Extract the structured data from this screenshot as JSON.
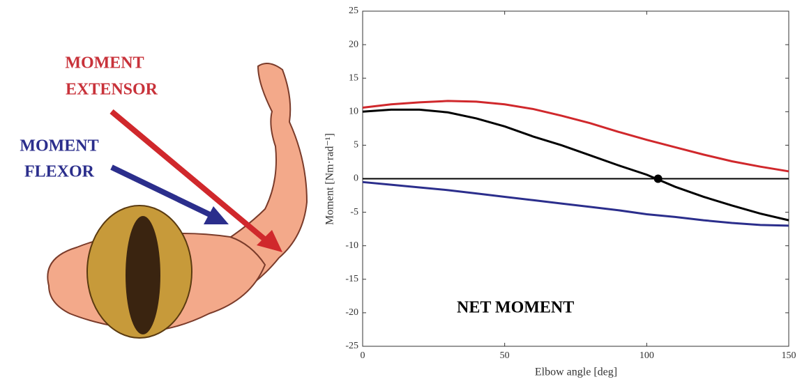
{
  "illustration": {
    "extensor_label": [
      "MOMENT",
      "EXTENSOR"
    ],
    "flexor_label": [
      "MOMENT",
      "FLEXOR"
    ]
  },
  "chart_data": {
    "type": "line",
    "annotation": "NET MOMENT",
    "x_label": "Elbow angle [deg]",
    "y_label": "Moment [Nm·rad⁻¹]",
    "x": [
      0,
      10,
      20,
      30,
      40,
      50,
      60,
      70,
      80,
      90,
      100,
      110,
      120,
      130,
      140,
      150
    ],
    "series": [
      {
        "color": "#d0282c",
        "values": [
          10.6,
          11.1,
          11.4,
          11.6,
          11.5,
          11.1,
          10.4,
          9.4,
          8.3,
          7.0,
          5.8,
          4.7,
          3.6,
          2.6,
          1.8,
          1.1
        ]
      },
      {
        "color": "#000000",
        "values": [
          10.0,
          10.3,
          10.3,
          9.9,
          9.0,
          7.8,
          6.3,
          5.0,
          3.5,
          2.0,
          0.6,
          -1.2,
          -2.7,
          -4.0,
          -5.2,
          -6.2
        ]
      },
      {
        "color": "#2b2e8c",
        "values": [
          -0.5,
          -0.9,
          -1.3,
          -1.7,
          -2.2,
          -2.7,
          -3.2,
          -3.7,
          -4.2,
          -4.7,
          -5.3,
          -5.7,
          -6.2,
          -6.6,
          -6.9,
          -7.0
        ]
      }
    ],
    "hline": 0,
    "marker": {
      "x": 104,
      "y": 0
    },
    "xlim": [
      0,
      150
    ],
    "xticks": [
      0,
      50,
      100,
      150
    ],
    "ylim": [
      -25,
      25
    ],
    "yticks": [
      -25,
      -20,
      -15,
      -10,
      -5,
      0,
      5,
      10,
      15,
      20,
      25
    ],
    "grid": false
  }
}
